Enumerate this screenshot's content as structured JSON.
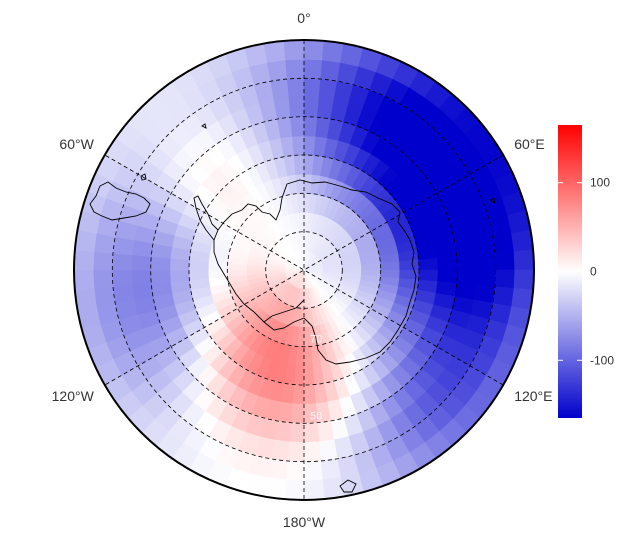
{
  "map": {
    "projection": "south-polar-stereographic",
    "outer_boundary_latitude": "-30",
    "lon_labels": [
      {
        "lon": 0,
        "text": "0°"
      },
      {
        "lon": 60,
        "text": "60°E"
      },
      {
        "lon": 120,
        "text": "120°E"
      },
      {
        "lon": 180,
        "text": "180°W"
      },
      {
        "lon": -120,
        "text": "120°W"
      },
      {
        "lon": -60,
        "text": "60°W"
      }
    ],
    "lat_circles": [
      -80,
      -70,
      -60,
      -50,
      -40
    ],
    "lat_labels": [
      {
        "lat": -70,
        "text": "70"
      },
      {
        "lat": -50,
        "text": "50"
      }
    ],
    "field_pattern": [
      {
        "lon": 40,
        "lat": -45,
        "value": -165,
        "spread_lon": 50,
        "spread_lat": 25
      },
      {
        "lon": 90,
        "lat": -48,
        "value": -120,
        "spread_lon": 45,
        "spread_lat": 25
      },
      {
        "lon": -100,
        "lat": -50,
        "value": -90,
        "spread_lon": 45,
        "spread_lat": 25
      },
      {
        "lon": -165,
        "lat": -62,
        "value": 85,
        "spread_lon": 40,
        "spread_lat": 20
      },
      {
        "lon": -110,
        "lat": -72,
        "value": 60,
        "spread_lon": 45,
        "spread_lat": 15
      },
      {
        "lon": -45,
        "lat": -55,
        "value": 30,
        "spread_lon": 25,
        "spread_lat": 15
      },
      {
        "lon": 140,
        "lat": -40,
        "value": -70,
        "spread_lon": 30,
        "spread_lat": 20
      },
      {
        "lon": 60,
        "lat": -75,
        "value": 20,
        "spread_lon": 60,
        "spread_lat": 8
      }
    ]
  },
  "colorbar": {
    "min": -165,
    "max": 165,
    "ticks": [
      {
        "value": 100,
        "text": "100"
      },
      {
        "value": 0,
        "text": "0"
      },
      {
        "value": -100,
        "text": "-100"
      }
    ],
    "colors": {
      "low": "#0000cc",
      "mid": "#ffffff",
      "high": "#ff0000"
    }
  }
}
